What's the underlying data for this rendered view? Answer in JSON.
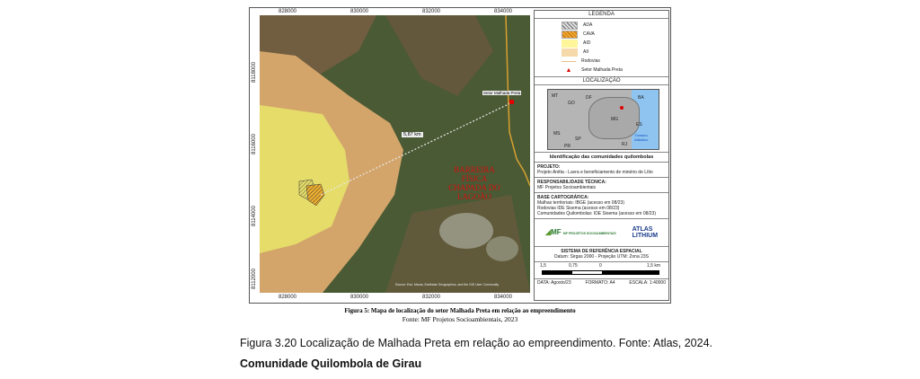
{
  "map": {
    "x_ticks": [
      "828000",
      "830000",
      "832000",
      "834000"
    ],
    "y_ticks": [
      "8118000",
      "8116000",
      "8114000",
      "8112000"
    ],
    "distance_label": "5,87 km",
    "point_label": "Setor Malhada Preta",
    "barrier_label": [
      "BARREIRA",
      "FÍSICA",
      "CHAPADA DO",
      "LAGOÃO"
    ],
    "attribution": "Source: Esri, Maxar, Earthstar Geographics, and the GIS User Community"
  },
  "legend": {
    "title": "LEGENDA",
    "items": [
      {
        "label": "ADA",
        "color": "#cccccc"
      },
      {
        "label": "CAVA",
        "color": "#f0a830"
      },
      {
        "label": "AID",
        "color": "#fff59a"
      },
      {
        "label": "AII",
        "color": "#f5d9a8"
      },
      {
        "label": "Rodovias",
        "color": "#e8c080"
      },
      {
        "label": "Setor Malhada Preta",
        "color": "#e00000"
      }
    ]
  },
  "location": {
    "title": "LOCALIZAÇÃO",
    "states": [
      "MT",
      "GO",
      "DF",
      "BA",
      "MG",
      "ES",
      "MS",
      "SP",
      "RJ",
      "PR"
    ],
    "ocean": [
      "Oceano",
      "Atlântico"
    ]
  },
  "panel": {
    "map_title": "Identificação das comunidades quilombolas",
    "project_label": "PROJETO:",
    "project": "Projeto Anitta - Lavra e beneficiamento de minério de Lítio",
    "resp_label": "RESPONSABILIDADE TÉCNICA:",
    "resp": "MF Projetos Socioambientais",
    "base_label": "BASE CARTOGRÁFICA:",
    "base": [
      "Malhas territoriais: IBGE (acesso em 08/23)",
      "Rodovias IDE Sisema (acesso em 08/23)",
      "Comunidades Quilombolas: IDE Sisema (acesso em 08/23)"
    ],
    "logo_mf": "MF PROJETOS SOCIOAMBIENTAIS",
    "logo_atlas": [
      "ATLAS",
      "LITHIUM"
    ],
    "srs_title": "SISTEMA DE REFERÊNCIA ESPACIAL",
    "srs": "Datum: Sirgas 2000 - Projeção UTM: Zona 23S",
    "scale_ticks": [
      "1,5",
      "0,75",
      "0",
      "1,5 km"
    ],
    "date": "DATA: Agosto/23",
    "format": "FORMATO: A4",
    "scale": "ESCALA: 1:40000"
  },
  "caption": {
    "figure": "Figura 5: Mapa de localização do setor Malhada Preta em relação ao empreendimento",
    "source": "Fonte: MF Projetos Socioambientais, 2023"
  },
  "document": {
    "figure_caption": "Figura 3.20 Localização de Malhada Preta em relação ao empreendimento.  Fonte: Atlas, 2024.",
    "heading": "Comunidade Quilombola de Girau"
  }
}
